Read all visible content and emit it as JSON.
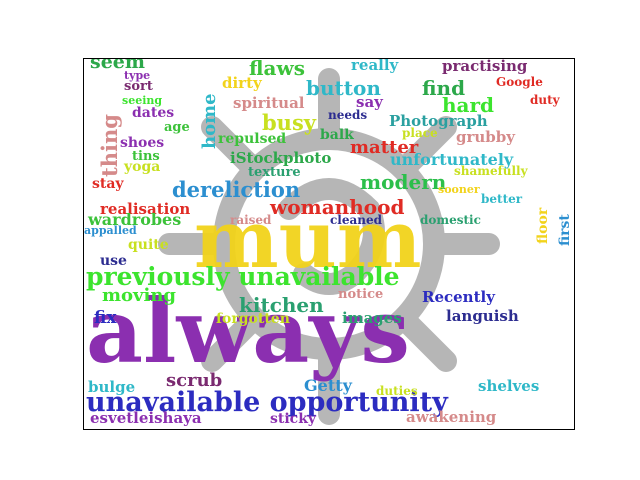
{
  "words": {
    "always": "always",
    "mum": "mum",
    "unavailable_opportunity": "unavailable opportunity",
    "previously_unavailable": "previously unavailable",
    "womanhood": "womanhood",
    "dereliction": "dereliction",
    "modern": "modern",
    "kitchen": "kitchen",
    "moving": "moving",
    "flaws": "flaws",
    "button": "button",
    "find": "find",
    "hard": "hard",
    "busy": "busy",
    "matter": "matter",
    "seem": "seem",
    "really": "really",
    "practising": "practising",
    "Google": "Google",
    "duty": "duty",
    "type": "type",
    "sort": "sort",
    "seeing": "seeing",
    "dates": "dates",
    "age": "age",
    "shoes": "shoes",
    "tins": "tins",
    "yoga": "yoga",
    "stay": "stay",
    "thing": "thing",
    "home": "home",
    "dirty": "dirty",
    "spiritual": "spiritual",
    "say": "say",
    "needs": "needs",
    "Photograph": "Photograph",
    "place": "place",
    "grubby": "grubby",
    "repulsed": "repulsed",
    "balk": "balk",
    "iStockphoto": "iStockphoto",
    "unfortunately": "unfortunately",
    "texture": "texture",
    "shamefully": "shamefully",
    "sooner": "sooner",
    "better": "better",
    "floor": "floor",
    "first": "first",
    "realisation": "realisation",
    "wardrobes": "wardrobes",
    "raised": "raised",
    "cleaned": "cleaned",
    "domestic": "domestic",
    "appalled": "appalled",
    "quite": "quite",
    "use": "use",
    "notice": "notice",
    "Recently": "Recently",
    "fix": "fix",
    "forgotten": "forgotten",
    "images": "images",
    "languish": "languish",
    "bulge": "bulge",
    "scrub": "scrub",
    "Getty": "Getty",
    "duties": "duties",
    "shelves": "shelves",
    "esvetleishaya": "esvetleishaya",
    "sticky": "sticky",
    "awakening": "awakening"
  },
  "colors": {
    "purple": "#8b2fb0",
    "gold": "#f2d31b",
    "blue": "#3535c8",
    "green": "#3ce42e",
    "red": "#e02b24",
    "teal": "#2fb8c8",
    "pink": "#d58a8a",
    "watermark": "#b3b3b3"
  }
}
